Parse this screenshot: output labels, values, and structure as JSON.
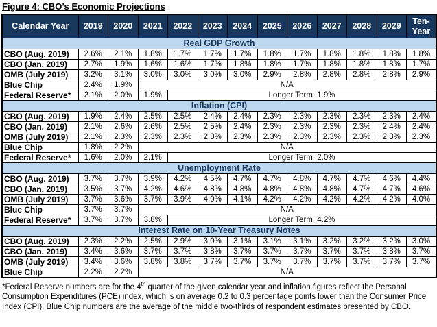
{
  "title": "Figure 4: CBO’s Economic Projections",
  "header": {
    "label": "Calendar Year",
    "years": [
      "2019",
      "2020",
      "2021",
      "2022",
      "2023",
      "2024",
      "2025",
      "2026",
      "2027",
      "2028",
      "2029"
    ],
    "ten_year": "Ten-Year"
  },
  "sections": [
    {
      "name": "Real GDP Growth",
      "rows": [
        {
          "label": "CBO (Aug. 2019)",
          "values": [
            "2.6%",
            "2.1%",
            "1.8%",
            "1.7%",
            "1.7%",
            "1.7%",
            "1.8%",
            "1.7%",
            "1.8%",
            "1.8%",
            "1.8%",
            "1.8%"
          ]
        },
        {
          "label": "CBO (Jan. 2019)",
          "values": [
            "2.7%",
            "1.9%",
            "1.6%",
            "1.6%",
            "1.7%",
            "1.8%",
            "1.8%",
            "1.7%",
            "1.8%",
            "1.8%",
            "1.8%",
            "1.7%"
          ]
        },
        {
          "label": "OMB (July 2019)",
          "values": [
            "3.2%",
            "3.1%",
            "3.0%",
            "3.0%",
            "3.0%",
            "3.0%",
            "2.9%",
            "2.8%",
            "2.8%",
            "2.8%",
            "2.8%",
            "2.9%"
          ]
        },
        {
          "label": "Blue Chip",
          "values": [
            "2.4%",
            "1.9%"
          ],
          "merged": "N/A"
        },
        {
          "label": "Federal Reserve*",
          "values": [
            "2.1%",
            "2.0%",
            "1.9%"
          ],
          "merged": "Longer Term: 1.9%"
        }
      ]
    },
    {
      "name": "Inflation (CPI)",
      "rows": [
        {
          "label": "CBO (Aug. 2019)",
          "values": [
            "1.9%",
            "2.4%",
            "2.5%",
            "2.5%",
            "2.4%",
            "2.4%",
            "2.3%",
            "2.3%",
            "2.3%",
            "2.3%",
            "2.3%",
            "2.4%"
          ]
        },
        {
          "label": "CBO (Jan. 2019)",
          "values": [
            "2.1%",
            "2.6%",
            "2.6%",
            "2.5%",
            "2.5%",
            "2.4%",
            "2.3%",
            "2.3%",
            "2.3%",
            "2.3%",
            "2.4%",
            "2.4%"
          ]
        },
        {
          "label": "OMB (July 2019)",
          "values": [
            "2.1%",
            "2.3%",
            "2.3%",
            "2.3%",
            "2.3%",
            "2.3%",
            "2.3%",
            "2.3%",
            "2.3%",
            "2.3%",
            "2.3%",
            "2.3%"
          ]
        },
        {
          "label": "Blue Chip",
          "values": [
            "1.8%",
            "2.2%"
          ],
          "merged": "N/A"
        },
        {
          "label": "Federal Reserve*",
          "values": [
            "1.6%",
            "2.0%",
            "2.1%"
          ],
          "merged": "Longer Term: 2.0%"
        }
      ]
    },
    {
      "name": "Unemployment Rate",
      "rows": [
        {
          "label": "CBO (Aug. 2019)",
          "values": [
            "3.7%",
            "3.7%",
            "3.9%",
            "4.2%",
            "4.5%",
            "4.7%",
            "4.7%",
            "4.8%",
            "4.7%",
            "4.7%",
            "4.6%",
            "4.4%"
          ]
        },
        {
          "label": "CBO (Jan. 2019)",
          "values": [
            "3.5%",
            "3.7%",
            "4.2%",
            "4.6%",
            "4.8%",
            "4.8%",
            "4.8%",
            "4.8%",
            "4.8%",
            "4.7%",
            "4.7%",
            "4.6%"
          ]
        },
        {
          "label": "OMB (July 2019)",
          "values": [
            "3.7%",
            "3.6%",
            "3.7%",
            "3.9%",
            "4.0%",
            "4.1%",
            "4.2%",
            "4.2%",
            "4.2%",
            "4.2%",
            "4.2%",
            "4.0%"
          ]
        },
        {
          "label": "Blue Chip",
          "values": [
            "3.7%",
            "3.7%"
          ],
          "merged": "N/A"
        },
        {
          "label": "Federal Reserve*",
          "values": [
            "3.7%",
            "3.7%",
            "3.8%"
          ],
          "merged": "Longer Term: 4.2%"
        }
      ]
    },
    {
      "name": "Interest Rate on 10-Year Treasury Notes",
      "rows": [
        {
          "label": "CBO (Aug. 2019)",
          "values": [
            "2.3%",
            "2.2%",
            "2.5%",
            "2.9%",
            "3.0%",
            "3.1%",
            "3.1%",
            "3.1%",
            "3.2%",
            "3.2%",
            "3.2%",
            "3.0%"
          ]
        },
        {
          "label": "CBO (Jan. 2019)",
          "values": [
            "3.4%",
            "3.6%",
            "3.7%",
            "3.7%",
            "3.8%",
            "3.7%",
            "3.7%",
            "3.7%",
            "3.7%",
            "3.7%",
            "3.8%",
            "3.7%"
          ]
        },
        {
          "label": "OMB (July 2019)",
          "values": [
            "3.4%",
            "3.6%",
            "3.8%",
            "3.8%",
            "3.7%",
            "3.7%",
            "3.7%",
            "3.7%",
            "3.7%",
            "3.7%",
            "3.7%",
            "3.7%"
          ]
        },
        {
          "label": "Blue Chip",
          "values": [
            "2.2%",
            "2.2%"
          ],
          "merged": "N/A"
        }
      ]
    }
  ],
  "footnote": {
    "pre": "*Federal Reserve numbers are for the 4",
    "sup": "th",
    "post": " quarter of the given calendar year and inflation figures reflect the Personal Consumption Expenditures (PCE) index, which is on average 0.2 to 0.3 percentage points lower than the Consumer Price Index (CPI). Blue Chip numbers are the average of the middle two-thirds of respondent estimates presented by CBO."
  },
  "colors": {
    "header_bg": "#17375D",
    "header_text": "#FFFFFF",
    "band_bg": "#BDD7EE",
    "band_text": "#17375D",
    "border": "#000000"
  }
}
